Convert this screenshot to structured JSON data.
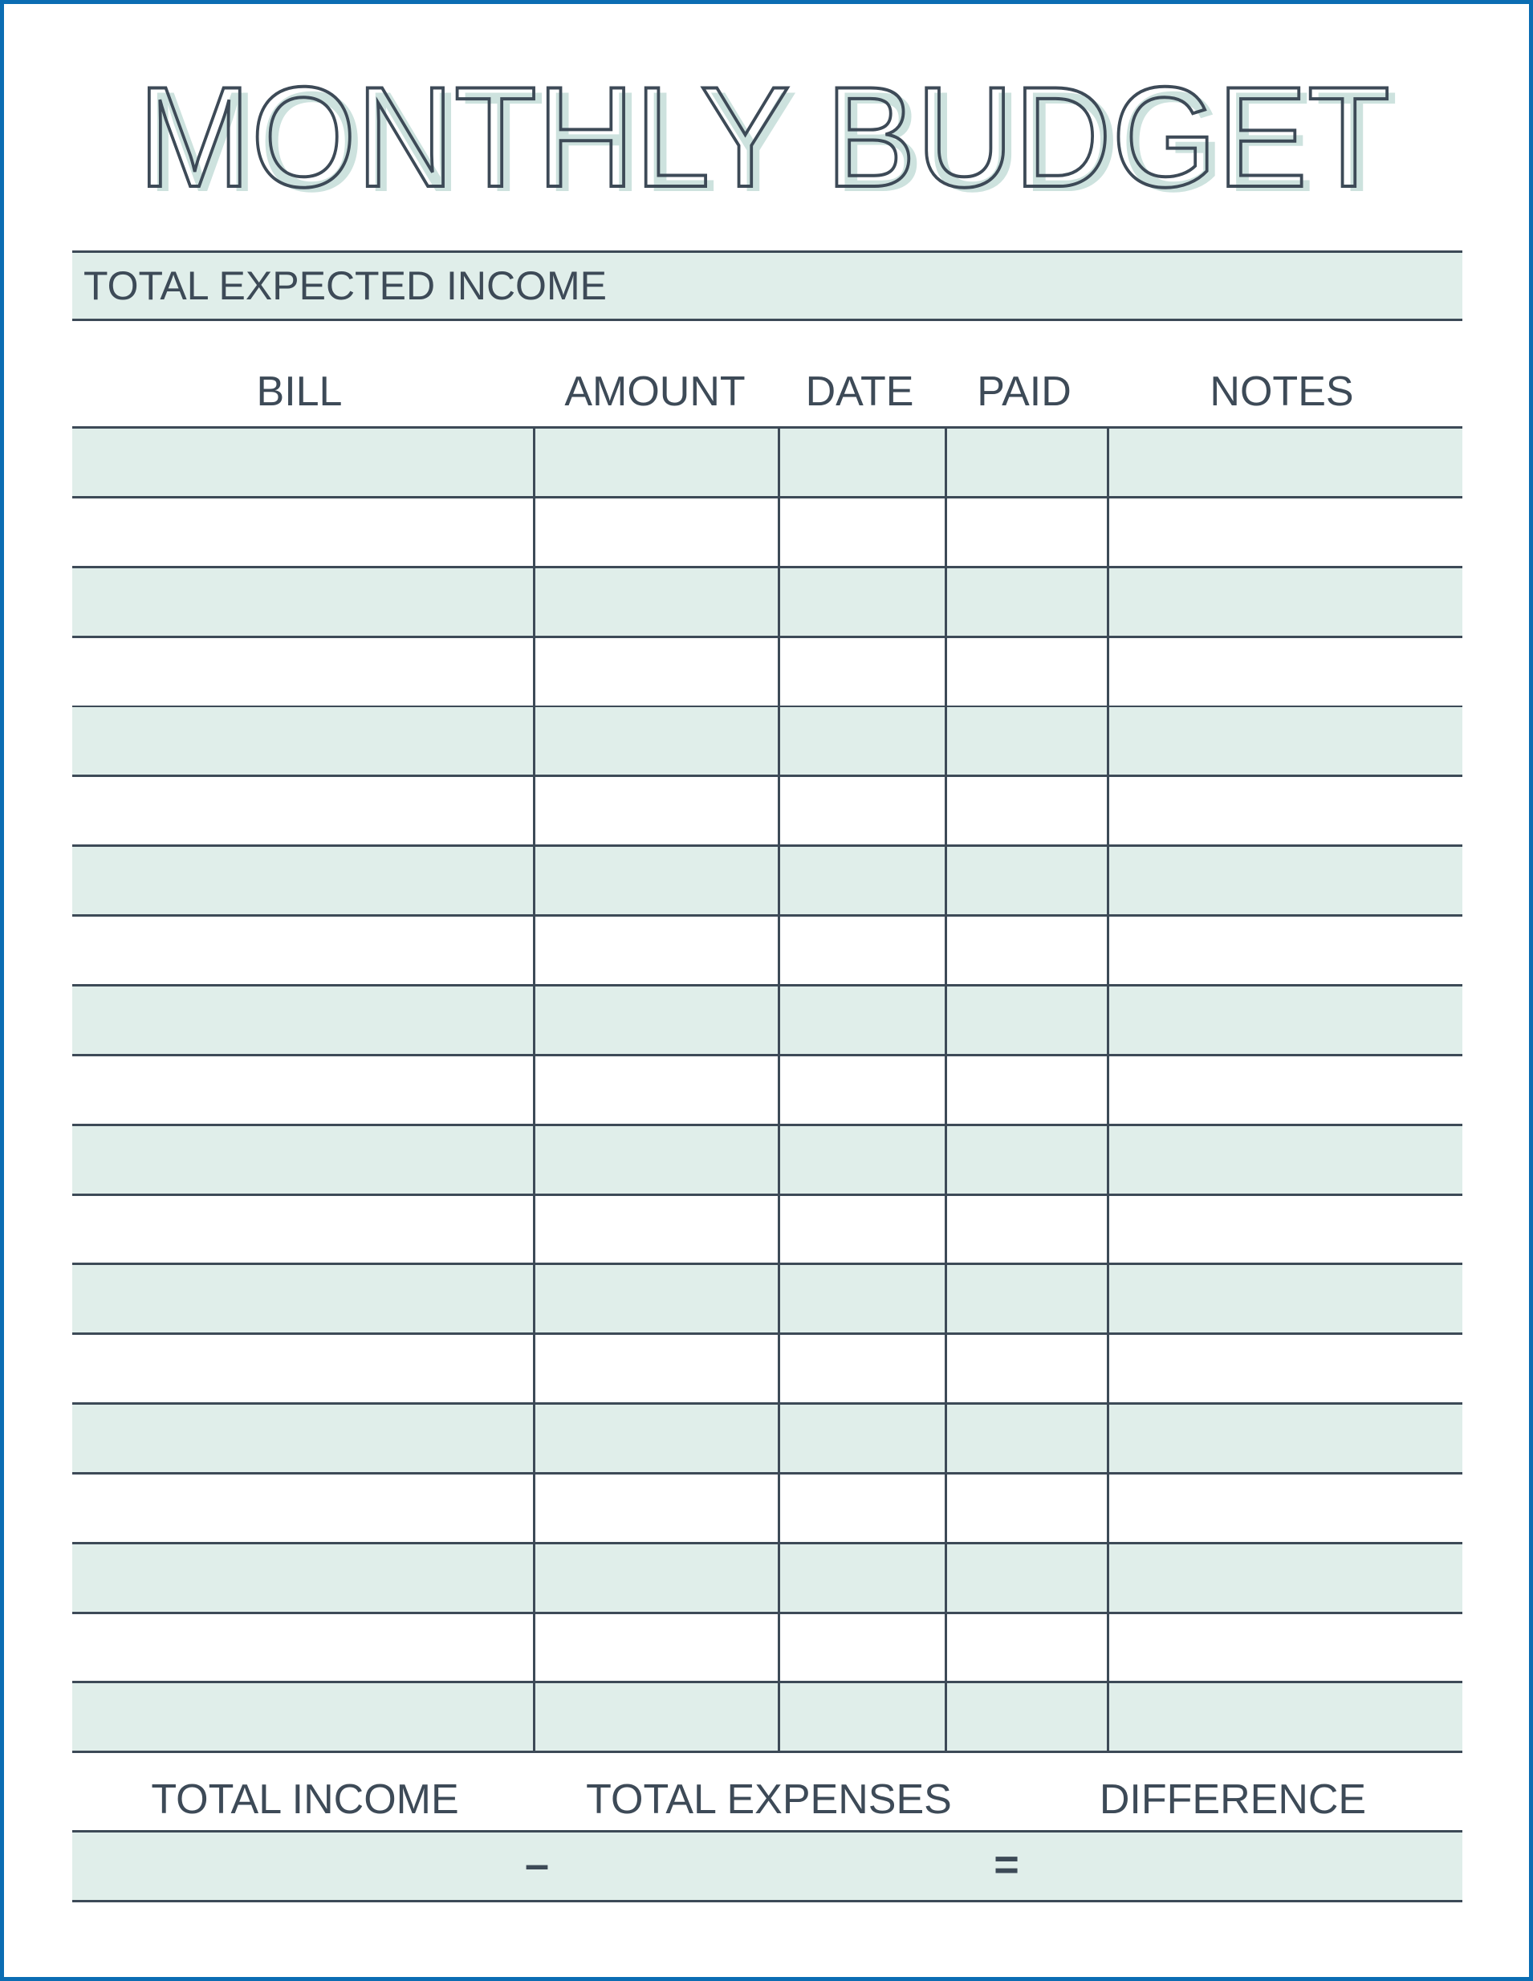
{
  "title": "MONTHLY BUDGET",
  "income": {
    "label": "TOTAL EXPECTED INCOME",
    "value": ""
  },
  "table": {
    "columns": [
      "BILL",
      "AMOUNT",
      "DATE",
      "PAID",
      "NOTES"
    ],
    "row_count": 19,
    "rows": []
  },
  "totals": {
    "labels": [
      "TOTAL INCOME",
      "TOTAL EXPENSES",
      "DIFFERENCE"
    ],
    "minus": "–",
    "equals": "="
  },
  "colors": {
    "border": "#0b6db3",
    "ink": "#3d4a57",
    "fill": "#e0eeea",
    "title_fill": "#cde2de"
  }
}
